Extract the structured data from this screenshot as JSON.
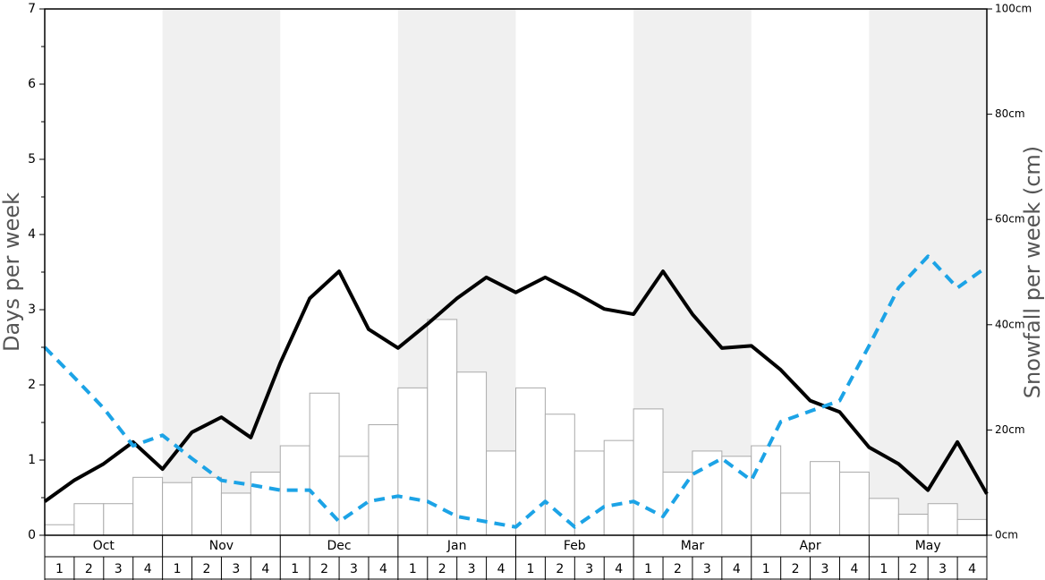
{
  "chart_data": {
    "type": "bar_line",
    "y_label": "Days per week",
    "y2_label": "Snowfall per week (cm)",
    "months": [
      "Oct",
      "Nov",
      "Dec",
      "Jan",
      "Feb",
      "Mar",
      "Apr",
      "May"
    ],
    "weeks": [
      "1",
      "2",
      "3",
      "4"
    ],
    "shade_alternate_months": true,
    "ylim": [
      0,
      7
    ],
    "yticks": [
      0,
      1,
      2,
      3,
      4,
      5,
      6,
      7
    ],
    "yminorticks": [
      0.5,
      1.5,
      2.5,
      3.5,
      4.5,
      5.5,
      6.5
    ],
    "y2lim": [
      0,
      100
    ],
    "y2ticks": [
      {
        "value": 0,
        "label": "0cm"
      },
      {
        "value": 20,
        "label": "20cm"
      },
      {
        "value": 40,
        "label": "40cm"
      },
      {
        "value": 60,
        "label": "60cm"
      },
      {
        "value": 80,
        "label": "80cm"
      },
      {
        "value": 100,
        "label": "100cm"
      }
    ],
    "series": [
      {
        "type": "bar",
        "axis": "y2",
        "color": "#ffffff",
        "values": [
          2,
          6,
          6,
          11,
          10,
          11,
          8,
          12,
          17,
          27,
          15,
          21,
          28,
          41,
          31,
          16,
          28,
          23,
          16,
          18,
          24,
          12,
          16,
          15,
          17,
          8,
          14,
          12,
          7,
          4,
          6,
          3
        ]
      },
      {
        "type": "line",
        "color": "#000000",
        "dashed": false,
        "values": [
          0.45,
          0.73,
          0.95,
          1.24,
          0.88,
          1.37,
          1.57,
          1.3,
          2.29,
          3.15,
          3.51,
          2.74,
          2.49,
          2.81,
          3.15,
          3.43,
          3.23,
          3.43,
          3.23,
          3.01,
          2.94,
          3.51,
          2.94,
          2.49,
          2.52,
          2.2,
          1.79,
          1.64,
          1.17,
          0.95,
          0.6,
          1.24,
          0.55
        ]
      },
      {
        "type": "line",
        "color": "#1ca3e6",
        "dashed": true,
        "values": [
          2.5,
          2.1,
          1.69,
          1.19,
          1.33,
          1.02,
          0.73,
          0.67,
          0.6,
          0.6,
          0.18,
          0.45,
          0.52,
          0.45,
          0.25,
          0.18,
          0.11,
          0.45,
          0.11,
          0.38,
          0.45,
          0.25,
          0.81,
          1.02,
          0.73,
          1.51,
          1.65,
          1.79,
          2.52,
          3.29,
          3.71,
          3.29,
          3.57
        ]
      }
    ]
  }
}
